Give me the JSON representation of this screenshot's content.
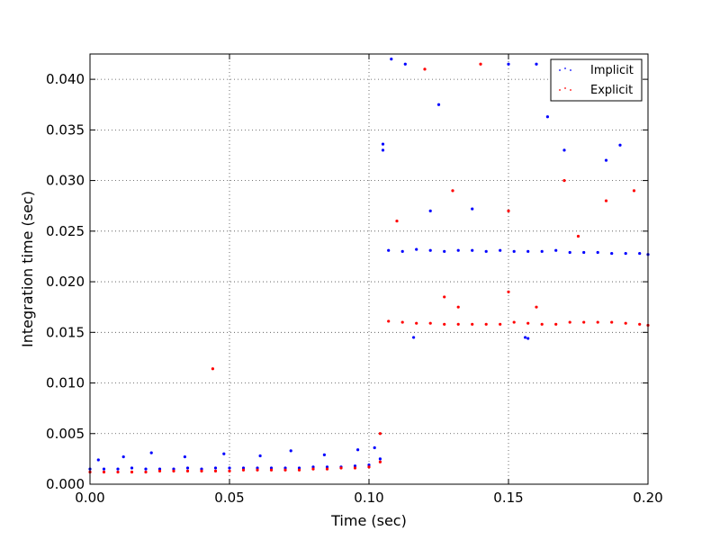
{
  "chart_data": {
    "type": "scatter",
    "title": "",
    "xlabel": "Time (sec)",
    "ylabel": "Integration time (sec)",
    "xlim": [
      0.0,
      0.2
    ],
    "ylim": [
      0.0,
      0.0425
    ],
    "grid": true,
    "legend_position": "top-right",
    "x_ticks": [
      "0.00",
      "0.05",
      "0.10",
      "0.15",
      "0.20"
    ],
    "x_tick_values": [
      0.0,
      0.05,
      0.1,
      0.15,
      0.2
    ],
    "y_ticks": [
      "0.000",
      "0.005",
      "0.010",
      "0.015",
      "0.020",
      "0.025",
      "0.030",
      "0.035",
      "0.040"
    ],
    "y_tick_values": [
      0.0,
      0.005,
      0.01,
      0.015,
      0.02,
      0.025,
      0.03,
      0.035,
      0.04
    ],
    "series": [
      {
        "name": "Implicit",
        "color": "#0000ff",
        "points": [
          [
            0.0,
            0.0015
          ],
          [
            0.005,
            0.0015
          ],
          [
            0.01,
            0.0015
          ],
          [
            0.015,
            0.0016
          ],
          [
            0.02,
            0.0015
          ],
          [
            0.025,
            0.0015
          ],
          [
            0.03,
            0.0015
          ],
          [
            0.035,
            0.0016
          ],
          [
            0.04,
            0.0015
          ],
          [
            0.045,
            0.0016
          ],
          [
            0.05,
            0.0016
          ],
          [
            0.055,
            0.0016
          ],
          [
            0.06,
            0.0016
          ],
          [
            0.065,
            0.0016
          ],
          [
            0.07,
            0.0016
          ],
          [
            0.075,
            0.0016
          ],
          [
            0.08,
            0.0017
          ],
          [
            0.085,
            0.0017
          ],
          [
            0.09,
            0.0017
          ],
          [
            0.095,
            0.0018
          ],
          [
            0.1,
            0.0019
          ],
          [
            0.104,
            0.0025
          ],
          [
            0.003,
            0.0024
          ],
          [
            0.012,
            0.0027
          ],
          [
            0.022,
            0.0031
          ],
          [
            0.034,
            0.0027
          ],
          [
            0.048,
            0.003
          ],
          [
            0.061,
            0.0028
          ],
          [
            0.072,
            0.0033
          ],
          [
            0.084,
            0.0029
          ],
          [
            0.096,
            0.0034
          ],
          [
            0.102,
            0.0036
          ],
          [
            0.105,
            0.033
          ],
          [
            0.105,
            0.0336
          ],
          [
            0.122,
            0.027
          ],
          [
            0.137,
            0.0272
          ],
          [
            0.113,
            0.0415
          ],
          [
            0.108,
            0.042
          ],
          [
            0.125,
            0.0375
          ],
          [
            0.15,
            0.0415
          ],
          [
            0.16,
            0.0415
          ],
          [
            0.164,
            0.0363
          ],
          [
            0.17,
            0.033
          ],
          [
            0.19,
            0.0335
          ],
          [
            0.185,
            0.032
          ],
          [
            0.197,
            0.04
          ],
          [
            0.107,
            0.0231
          ],
          [
            0.112,
            0.023
          ],
          [
            0.117,
            0.0232
          ],
          [
            0.122,
            0.0231
          ],
          [
            0.127,
            0.023
          ],
          [
            0.132,
            0.0231
          ],
          [
            0.137,
            0.0231
          ],
          [
            0.142,
            0.023
          ],
          [
            0.147,
            0.0231
          ],
          [
            0.152,
            0.023
          ],
          [
            0.157,
            0.023
          ],
          [
            0.162,
            0.023
          ],
          [
            0.167,
            0.0231
          ],
          [
            0.172,
            0.0229
          ],
          [
            0.177,
            0.0229
          ],
          [
            0.182,
            0.0229
          ],
          [
            0.187,
            0.0228
          ],
          [
            0.192,
            0.0228
          ],
          [
            0.197,
            0.0228
          ],
          [
            0.2,
            0.0227
          ],
          [
            0.116,
            0.0145
          ],
          [
            0.156,
            0.0145
          ],
          [
            0.157,
            0.0144
          ]
        ]
      },
      {
        "name": "Explicit",
        "color": "#ff0000",
        "points": [
          [
            0.0,
            0.0012
          ],
          [
            0.005,
            0.0012
          ],
          [
            0.01,
            0.0012
          ],
          [
            0.015,
            0.0012
          ],
          [
            0.02,
            0.0012
          ],
          [
            0.025,
            0.0013
          ],
          [
            0.03,
            0.0013
          ],
          [
            0.035,
            0.0013
          ],
          [
            0.04,
            0.0013
          ],
          [
            0.045,
            0.0013
          ],
          [
            0.05,
            0.0013
          ],
          [
            0.055,
            0.0014
          ],
          [
            0.06,
            0.0014
          ],
          [
            0.065,
            0.0014
          ],
          [
            0.07,
            0.0014
          ],
          [
            0.075,
            0.0014
          ],
          [
            0.08,
            0.0015
          ],
          [
            0.085,
            0.0015
          ],
          [
            0.09,
            0.0016
          ],
          [
            0.095,
            0.0016
          ],
          [
            0.1,
            0.0017
          ],
          [
            0.104,
            0.0022
          ],
          [
            0.044,
            0.0114
          ],
          [
            0.104,
            0.005
          ],
          [
            0.107,
            0.0161
          ],
          [
            0.112,
            0.016
          ],
          [
            0.117,
            0.0159
          ],
          [
            0.122,
            0.0159
          ],
          [
            0.127,
            0.0158
          ],
          [
            0.132,
            0.0158
          ],
          [
            0.137,
            0.0158
          ],
          [
            0.142,
            0.0158
          ],
          [
            0.147,
            0.0158
          ],
          [
            0.152,
            0.016
          ],
          [
            0.157,
            0.0159
          ],
          [
            0.162,
            0.0158
          ],
          [
            0.167,
            0.0158
          ],
          [
            0.172,
            0.016
          ],
          [
            0.177,
            0.016
          ],
          [
            0.182,
            0.016
          ],
          [
            0.187,
            0.016
          ],
          [
            0.192,
            0.0159
          ],
          [
            0.197,
            0.0158
          ],
          [
            0.2,
            0.0157
          ],
          [
            0.127,
            0.0185
          ],
          [
            0.15,
            0.019
          ],
          [
            0.132,
            0.0175
          ],
          [
            0.16,
            0.0175
          ],
          [
            0.11,
            0.026
          ],
          [
            0.13,
            0.029
          ],
          [
            0.15,
            0.027
          ],
          [
            0.17,
            0.03
          ],
          [
            0.185,
            0.028
          ],
          [
            0.195,
            0.029
          ],
          [
            0.12,
            0.041
          ],
          [
            0.14,
            0.0415
          ],
          [
            0.175,
            0.0245
          ]
        ]
      }
    ]
  }
}
